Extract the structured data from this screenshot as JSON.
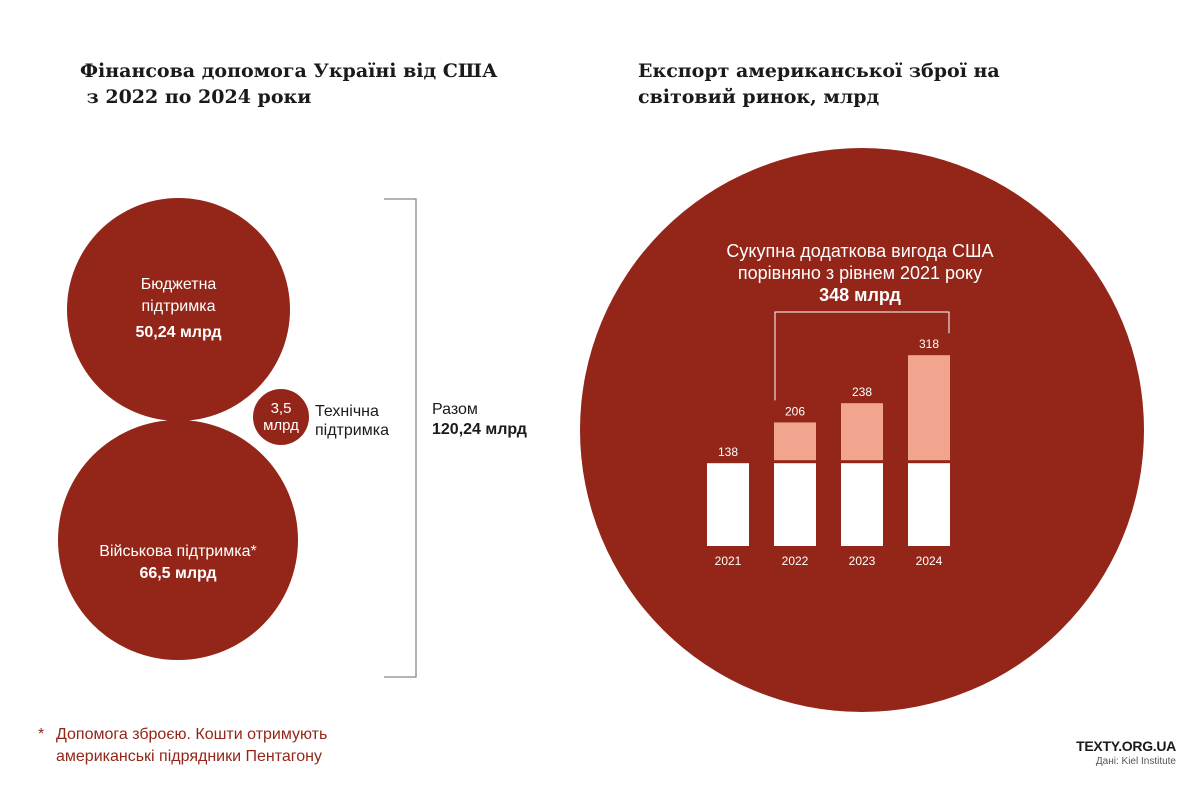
{
  "left_title": {
    "line1": "Фінансова допомога Україні від США",
    "line2": " з 2022 по 2024 роки"
  },
  "right_title": {
    "line1": "Експорт американської зброї на",
    "line2": "світовий ринок, млрд"
  },
  "aid": {
    "budget": {
      "label_line1": "Бюджетна",
      "label_line2": "підтримка",
      "value": "50,24 млрд"
    },
    "military": {
      "label": "Військова підтримка*",
      "value": "66,5 млрд"
    },
    "technical": {
      "value_num": "3,5",
      "value_unit": "млрд",
      "label_line1": "Технічна",
      "label_line2": "підтримка"
    },
    "total": {
      "label": "Разом",
      "value": "120,24 млрд"
    }
  },
  "export_summary": {
    "line1": "Сукупна додаткова вигода США",
    "line2": "порівняно з рівнем 2021 року",
    "value": "348 млрд"
  },
  "chart_data": {
    "type": "bar",
    "title": "Експорт американської зброї на світовий ринок, млрд",
    "categories": [
      "2021",
      "2022",
      "2023",
      "2024"
    ],
    "values": [
      138,
      206,
      238,
      318
    ],
    "baseline": 138,
    "series": [
      {
        "name": "Рівень 2021 року",
        "values": [
          138,
          138,
          138,
          138
        ],
        "color": "#ffffff"
      },
      {
        "name": "Додаткова вигода",
        "values": [
          0,
          68,
          100,
          180
        ],
        "color": "#f1a58e"
      }
    ],
    "value_labels": [
      "138",
      "206",
      "238",
      "318"
    ],
    "ylim": [
      0,
      320
    ]
  },
  "footnote": {
    "star": "*",
    "line1": "Допомога зброєю. Кошти отримують",
    "line2": "американські підрядники Пентагону"
  },
  "brand": {
    "name": "TEXTY.ORG.UA",
    "source": "Дані: Kiel Institute"
  },
  "colors": {
    "circle": "#932618",
    "base_bar": "#ffffff",
    "extra_bar": "#f1a58e",
    "footnote": "#932618"
  }
}
